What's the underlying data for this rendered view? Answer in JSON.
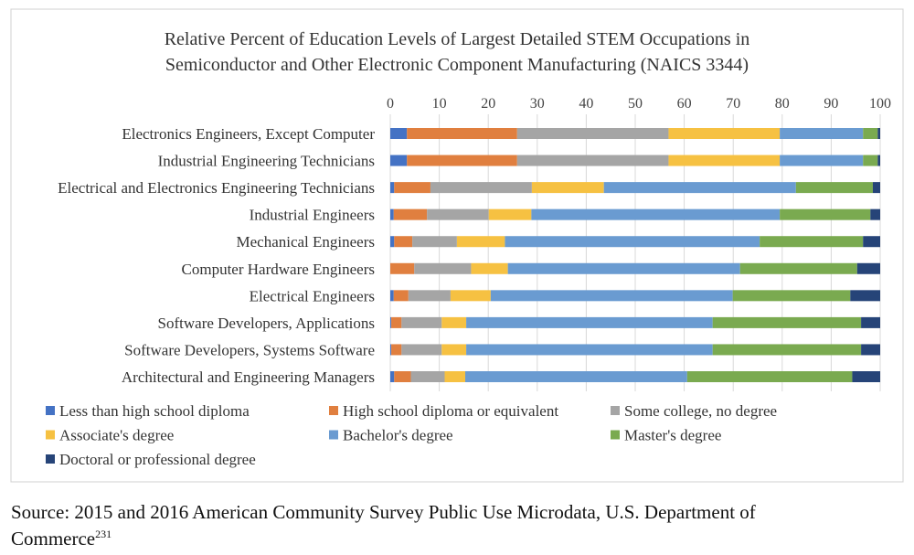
{
  "chart_data": {
    "type": "bar",
    "orientation": "horizontal",
    "stacked": true,
    "title_lines": [
      "Relative Percent of Education Levels of Largest Detailed STEM Occupations in",
      "Semiconductor and Other Electronic Component Manufacturing (NAICS 3344)"
    ],
    "xlim": [
      0,
      100
    ],
    "xticks": [
      0,
      10,
      20,
      30,
      40,
      50,
      60,
      70,
      80,
      90,
      100
    ],
    "grid": true,
    "legend_position": "bottom",
    "categories": [
      "Electronics Engineers, Except Computer",
      "Industrial Engineering Technicians",
      "Electrical and Electronics Engineering Technicians",
      "Industrial Engineers",
      "Mechanical Engineers",
      "Computer Hardware Engineers",
      "Electrical Engineers",
      "Software Developers, Applications",
      "Software Developers, Systems Software",
      "Architectural and Engineering Managers"
    ],
    "series": [
      {
        "name": "Less than high school diploma",
        "color": "#4472c4",
        "values": [
          3.4,
          3.4,
          0.8,
          0.7,
          0.8,
          0,
          0.7,
          0.2,
          0.2,
          0.8
        ]
      },
      {
        "name": "High school diploma or equivalent",
        "color": "#e07f3f",
        "values": [
          22.5,
          22.5,
          7.4,
          6.8,
          3.7,
          4.9,
          3.0,
          2.1,
          2.1,
          3.4
        ]
      },
      {
        "name": "Some college, no degree",
        "color": "#a5a5a5",
        "values": [
          30.9,
          30.9,
          20.7,
          12.6,
          9.1,
          11.6,
          8.6,
          8.2,
          8.2,
          6.9
        ]
      },
      {
        "name": "Associate's degree",
        "color": "#f6c142",
        "values": [
          22.7,
          22.7,
          14.7,
          8.7,
          9.8,
          7.5,
          8.2,
          5.0,
          5.0,
          4.2
        ]
      },
      {
        "name": "Bachelor's degree",
        "color": "#6a9bd1",
        "values": [
          17.0,
          17.0,
          39.2,
          50.7,
          52.0,
          47.4,
          49.4,
          50.3,
          50.3,
          45.3
        ]
      },
      {
        "name": "Master's degree",
        "color": "#7aaa50",
        "values": [
          3.0,
          3.0,
          15.7,
          18.5,
          21.1,
          23.9,
          24.0,
          30.3,
          30.3,
          33.7
        ]
      },
      {
        "name": "Doctoral or professional degree",
        "color": "#264478",
        "values": [
          0.5,
          0.5,
          1.5,
          2.0,
          3.5,
          4.7,
          6.1,
          3.9,
          3.9,
          5.7
        ]
      }
    ]
  },
  "source": {
    "line1": "Source: 2015 and 2016 American Community Survey Public Use Microdata, U.S. Department of",
    "line2": "Commerce",
    "footnote": "231"
  }
}
